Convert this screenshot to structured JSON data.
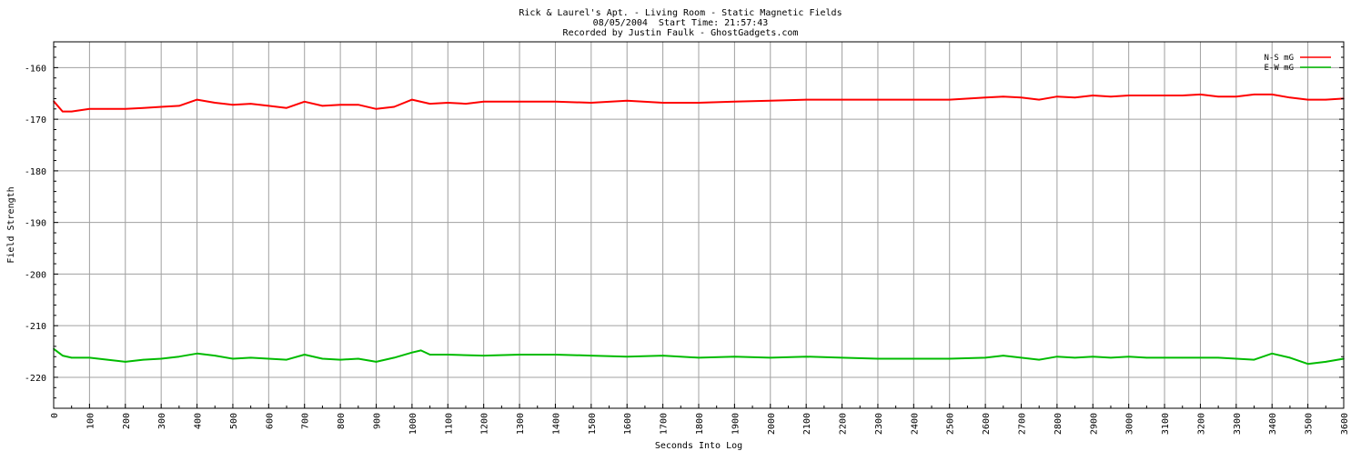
{
  "chart_data": {
    "type": "line",
    "title_lines": [
      "Rick & Laurel's Apt. - Living Room - Static Magnetic Fields",
      "08/05/2004  Start Time: 21:57:43",
      "Recorded by Justin Faulk - GhostGadgets.com"
    ],
    "xlabel": "Seconds Into Log",
    "ylabel": "Field Strength",
    "xlim": [
      0,
      3600
    ],
    "ylim": [
      -226,
      -155
    ],
    "xticks": [
      0,
      100,
      200,
      300,
      400,
      500,
      600,
      700,
      800,
      900,
      1000,
      1100,
      1200,
      1300,
      1400,
      1500,
      1600,
      1700,
      1800,
      1900,
      2000,
      2100,
      2200,
      2300,
      2400,
      2500,
      2600,
      2700,
      2800,
      2900,
      3000,
      3100,
      3200,
      3300,
      3400,
      3500,
      3600
    ],
    "yticks": [
      -160,
      -170,
      -180,
      -190,
      -200,
      -210,
      -220
    ],
    "grid": true,
    "legend_position": "top-right",
    "series": [
      {
        "name": "N-S mG",
        "color": "#ff0000",
        "x": [
          0,
          25,
          50,
          100,
          150,
          200,
          250,
          300,
          350,
          400,
          450,
          500,
          550,
          600,
          650,
          700,
          750,
          800,
          850,
          900,
          950,
          1000,
          1050,
          1100,
          1150,
          1200,
          1300,
          1400,
          1500,
          1600,
          1700,
          1800,
          1900,
          2000,
          2100,
          2200,
          2300,
          2400,
          2500,
          2600,
          2650,
          2700,
          2750,
          2800,
          2850,
          2900,
          2950,
          3000,
          3050,
          3100,
          3150,
          3200,
          3250,
          3300,
          3350,
          3400,
          3450,
          3500,
          3550,
          3600
        ],
        "y": [
          -166.5,
          -168.5,
          -168.5,
          -168,
          -168,
          -168,
          -167.8,
          -167.6,
          -167.4,
          -166.2,
          -166.8,
          -167.2,
          -167,
          -167.4,
          -167.8,
          -166.6,
          -167.4,
          -167.2,
          -167.2,
          -168,
          -167.6,
          -166.2,
          -167,
          -166.8,
          -167,
          -166.6,
          -166.6,
          -166.6,
          -166.8,
          -166.4,
          -166.8,
          -166.8,
          -166.6,
          -166.4,
          -166.2,
          -166.2,
          -166.2,
          -166.2,
          -166.2,
          -165.8,
          -165.6,
          -165.8,
          -166.2,
          -165.6,
          -165.8,
          -165.4,
          -165.6,
          -165.4,
          -165.4,
          -165.4,
          -165.4,
          -165.2,
          -165.6,
          -165.6,
          -165.2,
          -165.2,
          -165.8,
          -166.2,
          -166.2,
          -166
        ]
      },
      {
        "name": "E-W mG",
        "color": "#00bb00",
        "x": [
          0,
          25,
          50,
          100,
          150,
          200,
          250,
          300,
          350,
          400,
          450,
          500,
          550,
          600,
          650,
          700,
          750,
          800,
          850,
          900,
          950,
          1000,
          1025,
          1050,
          1100,
          1200,
          1300,
          1400,
          1500,
          1600,
          1700,
          1800,
          1900,
          2000,
          2100,
          2200,
          2300,
          2400,
          2500,
          2600,
          2650,
          2700,
          2750,
          2800,
          2850,
          2900,
          2950,
          3000,
          3050,
          3100,
          3150,
          3200,
          3250,
          3300,
          3350,
          3400,
          3450,
          3500,
          3550,
          3600
        ],
        "y": [
          -214.5,
          -215.8,
          -216.2,
          -216.2,
          -216.6,
          -217,
          -216.6,
          -216.4,
          -216,
          -215.4,
          -215.8,
          -216.4,
          -216.2,
          -216.4,
          -216.6,
          -215.6,
          -216.4,
          -216.6,
          -216.4,
          -217,
          -216.2,
          -215.2,
          -214.8,
          -215.6,
          -215.6,
          -215.8,
          -215.6,
          -215.6,
          -215.8,
          -216,
          -215.8,
          -216.2,
          -216,
          -216.2,
          -216,
          -216.2,
          -216.4,
          -216.4,
          -216.4,
          -216.2,
          -215.8,
          -216.2,
          -216.6,
          -216,
          -216.2,
          -216,
          -216.2,
          -216,
          -216.2,
          -216.2,
          -216.2,
          -216.2,
          -216.2,
          -216.4,
          -216.6,
          -215.4,
          -216.2,
          -217.4,
          -217,
          -216.4
        ]
      }
    ]
  }
}
